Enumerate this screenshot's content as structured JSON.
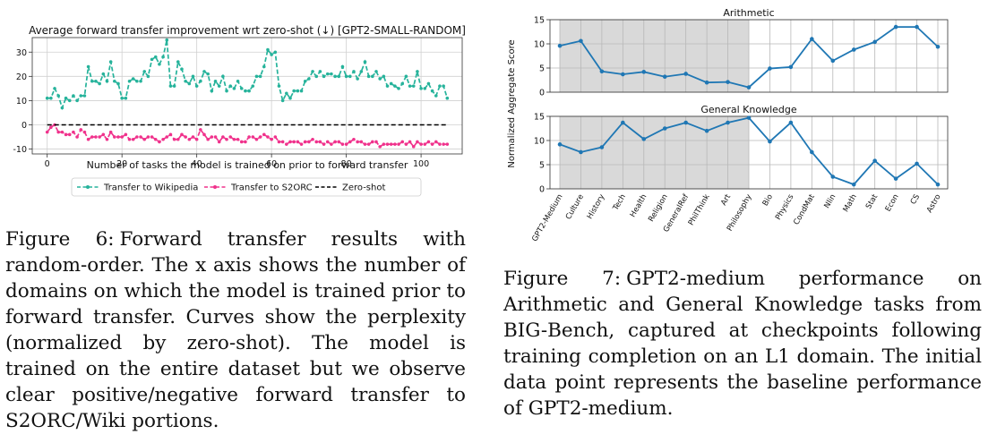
{
  "figure6": {
    "caption_label": "Figure 6:",
    "caption_text": "Forward transfer results with random-order. The x axis shows the number of domains on which the model is trained prior to forward transfer. Curves show the perplexity (normalized by zero-shot). The model is trained on the entire dataset but we observe clear positive/negative forward transfer to S2ORC/Wiki portions."
  },
  "figure7": {
    "caption_label": "Figure 7:",
    "caption_text": "GPT2-medium performance on Arithmetic and General Knowledge tasks from BIG-Bench, captured at checkpoints following training completion on an L1 domain. The initial data point represents the baseline performance of GPT2-medium."
  },
  "colors": {
    "teal": "#26b39b",
    "pink": "#f0328c",
    "blue": "#1f77b4",
    "shade": "#d9d9d9",
    "grid": "#d0d0d0"
  },
  "chart_data": [
    {
      "type": "line",
      "title": "Average forward transfer improvement wrt zero-shot (↓) [GPT2-SMALL-RANDOM]",
      "xlabel": "Number of tasks the model is trained on prior to forward transfer",
      "ylabel": "",
      "xlim": [
        -4,
        111
      ],
      "ylim": [
        -12,
        36
      ],
      "xticks": [
        0,
        20,
        40,
        60,
        80,
        100
      ],
      "yticks": [
        -10,
        0,
        10,
        20,
        30
      ],
      "grid": true,
      "legend_position": "bottom-center",
      "series": [
        {
          "name": "Transfer to Wikipedia",
          "color": "#26b39b",
          "style": "dashed-dots",
          "x": [
            0,
            1,
            2,
            3,
            4,
            5,
            6,
            7,
            8,
            9,
            10,
            11,
            12,
            13,
            14,
            15,
            16,
            17,
            18,
            19,
            20,
            21,
            22,
            23,
            24,
            25,
            26,
            27,
            28,
            29,
            30,
            31,
            32,
            33,
            34,
            35,
            36,
            37,
            38,
            39,
            40,
            41,
            42,
            43,
            44,
            45,
            46,
            47,
            48,
            49,
            50,
            51,
            52,
            53,
            54,
            55,
            56,
            57,
            58,
            59,
            60,
            61,
            62,
            63,
            64,
            65,
            66,
            67,
            68,
            69,
            70,
            71,
            72,
            73,
            74,
            75,
            76,
            77,
            78,
            79,
            80,
            81,
            82,
            83,
            84,
            85,
            86,
            87,
            88,
            89,
            90,
            91,
            92,
            93,
            94,
            95,
            96,
            97,
            98,
            99,
            100,
            101,
            102,
            103,
            104,
            105,
            106,
            107
          ],
          "y": [
            11,
            11,
            15,
            12,
            7,
            11,
            10,
            12,
            10,
            12,
            12,
            24,
            18,
            18,
            17,
            21,
            18,
            26,
            18,
            17,
            11,
            11,
            18,
            19,
            18,
            18,
            22,
            20,
            27,
            28,
            25,
            28,
            35,
            16,
            16,
            26,
            23,
            18,
            17,
            20,
            16,
            18,
            22,
            21,
            14,
            18,
            16,
            20,
            14,
            16,
            15,
            18,
            15,
            14,
            14,
            16,
            20,
            20,
            24,
            31,
            29,
            30,
            16,
            10,
            13,
            11,
            14,
            14,
            14,
            18,
            19,
            22,
            20,
            22,
            20,
            21,
            21,
            20,
            20,
            24,
            20,
            20,
            22,
            19,
            22,
            26,
            20,
            20,
            22,
            19,
            20,
            16,
            17,
            16,
            15,
            17,
            20,
            16,
            16,
            22,
            15,
            15,
            17,
            14,
            12,
            16,
            16,
            11
          ]
        },
        {
          "name": "Transfer to S2ORC",
          "color": "#f0328c",
          "style": "dashed-dots",
          "x": [
            0,
            1,
            2,
            3,
            4,
            5,
            6,
            7,
            8,
            9,
            10,
            11,
            12,
            13,
            14,
            15,
            16,
            17,
            18,
            19,
            20,
            21,
            22,
            23,
            24,
            25,
            26,
            27,
            28,
            29,
            30,
            31,
            32,
            33,
            34,
            35,
            36,
            37,
            38,
            39,
            40,
            41,
            42,
            43,
            44,
            45,
            46,
            47,
            48,
            49,
            50,
            51,
            52,
            53,
            54,
            55,
            56,
            57,
            58,
            59,
            60,
            61,
            62,
            63,
            64,
            65,
            66,
            67,
            68,
            69,
            70,
            71,
            72,
            73,
            74,
            75,
            76,
            77,
            78,
            79,
            80,
            81,
            82,
            83,
            84,
            85,
            86,
            87,
            88,
            89,
            90,
            91,
            92,
            93,
            94,
            95,
            96,
            97,
            98,
            99,
            100,
            101,
            102,
            103,
            104,
            105,
            106,
            107
          ],
          "y": [
            -3,
            -1,
            0,
            -3,
            -3,
            -4,
            -4,
            -3,
            -5,
            -2,
            -3,
            -6,
            -5,
            -5,
            -5,
            -4,
            -6,
            -3,
            -5,
            -5,
            -5,
            -4,
            -6,
            -6,
            -5,
            -5,
            -6,
            -5,
            -5,
            -6,
            -7,
            -6,
            -5,
            -4,
            -6,
            -6,
            -4,
            -5,
            -6,
            -5,
            -6,
            -2,
            -4,
            -6,
            -5,
            -5,
            -7,
            -5,
            -6,
            -5,
            -6,
            -6,
            -7,
            -7,
            -5,
            -5,
            -6,
            -5,
            -4,
            -5,
            -6,
            -5,
            -7,
            -7,
            -8,
            -7,
            -7,
            -7,
            -8,
            -7,
            -7,
            -6,
            -7,
            -7,
            -8,
            -7,
            -8,
            -7,
            -7,
            -8,
            -8,
            -7,
            -6,
            -7,
            -7,
            -8,
            -8,
            -7,
            -7,
            -9,
            -8,
            -8,
            -8,
            -8,
            -8,
            -7,
            -8,
            -7,
            -9,
            -7,
            -8,
            -8,
            -7,
            -8,
            -7,
            -8,
            -8,
            -8
          ]
        },
        {
          "name": "Zero-shot",
          "color": "#000000",
          "style": "dashed",
          "x": [
            0,
            107
          ],
          "y": [
            0,
            0
          ]
        }
      ]
    },
    {
      "type": "line",
      "title": "Arithmetic",
      "ylabel": "Normalized Aggregate Score",
      "categories": [
        "GPT2-Medium",
        "Culture",
        "History",
        "Tech",
        "Health",
        "Religion",
        "GeneralRef",
        "PhilThink",
        "Art",
        "Philosophy",
        "Bio",
        "Physics",
        "CondMat",
        "Nlin",
        "Math",
        "Stat",
        "Econ",
        "CS",
        "Astro"
      ],
      "values": [
        9.6,
        10.6,
        4.3,
        3.7,
        4.2,
        3.2,
        3.8,
        2.0,
        2.1,
        1.0,
        4.9,
        5.2,
        11.0,
        6.5,
        8.8,
        10.4,
        13.5,
        13.5,
        9.4
      ],
      "ylim": [
        0,
        15
      ],
      "yticks": [
        0,
        5,
        10,
        15
      ],
      "shaded_category_range": [
        "GPT2-Medium",
        "Philosophy"
      ],
      "grid": true
    },
    {
      "type": "line",
      "title": "General Knowledge",
      "categories": [
        "GPT2-Medium",
        "Culture",
        "History",
        "Tech",
        "Health",
        "Religion",
        "GeneralRef",
        "PhilThink",
        "Art",
        "Philosophy",
        "Bio",
        "Physics",
        "CondMat",
        "Nlin",
        "Math",
        "Stat",
        "Econ",
        "CS",
        "Astro"
      ],
      "values": [
        9.2,
        7.6,
        8.6,
        13.7,
        10.3,
        12.5,
        13.7,
        12.0,
        13.7,
        14.7,
        9.8,
        13.7,
        7.6,
        2.5,
        0.9,
        5.8,
        2.1,
        5.2,
        0.9
      ],
      "ylim": [
        0,
        15
      ],
      "yticks": [
        0,
        5,
        10,
        15
      ],
      "shaded_category_range": [
        "GPT2-Medium",
        "Philosophy"
      ],
      "grid": true
    }
  ]
}
